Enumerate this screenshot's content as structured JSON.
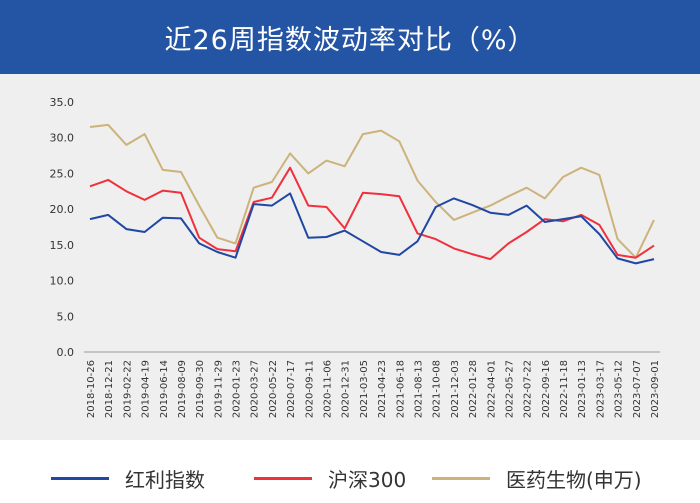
{
  "header": {
    "title": "近26周指数波动率对比（%）"
  },
  "colors": {
    "header_bg": "#2454a4",
    "series_1": "#1f47a3",
    "series_2": "#f0303c",
    "series_3": "#cdb27a",
    "plot_bg": "#efefef"
  },
  "chart_data": {
    "type": "line",
    "title": "近26周指数波动率对比（%）",
    "xlabel": "",
    "ylabel": "",
    "ylim": [
      0,
      35
    ],
    "yticks": [
      "0.0",
      "5.0",
      "10.0",
      "15.0",
      "20.0",
      "25.0",
      "30.0",
      "35.0"
    ],
    "grid": false,
    "legend_position": "bottom",
    "x": [
      "2018-10-26",
      "2018-12-21",
      "2019-02-22",
      "2019-04-19",
      "2019-06-14",
      "2019-08-09",
      "2019-09-30",
      "2019-11-29",
      "2020-01-23",
      "2020-03-27",
      "2020-05-22",
      "2020-07-17",
      "2020-09-11",
      "2020-11-06",
      "2020-12-31",
      "2021-03-05",
      "2021-04-23",
      "2021-06-18",
      "2021-08-13",
      "2021-10-08",
      "2021-12-03",
      "2022-01-28",
      "2022-04-01",
      "2022-05-27",
      "2022-07-22",
      "2022-09-16",
      "2022-11-18",
      "2023-01-13",
      "2023-03-17",
      "2023-05-12",
      "2023-07-07",
      "2023-09-01"
    ],
    "series": [
      {
        "name": "红利指数",
        "color": "#1f47a3",
        "values": [
          18.6,
          19.2,
          17.2,
          16.8,
          18.8,
          18.7,
          15.2,
          14.0,
          13.2,
          20.7,
          20.5,
          22.2,
          16.0,
          16.1,
          17.0,
          15.5,
          14.0,
          13.6,
          15.5,
          20.3,
          21.5,
          20.6,
          19.5,
          19.2,
          20.5,
          18.2,
          18.6,
          19.0,
          16.5,
          13.1,
          12.4,
          13.0
        ]
      },
      {
        "name": "沪深300",
        "color": "#f0303c",
        "values": [
          23.2,
          24.1,
          22.5,
          21.3,
          22.6,
          22.3,
          16.0,
          14.4,
          14.1,
          21.0,
          21.6,
          25.8,
          20.5,
          20.3,
          17.3,
          22.3,
          22.1,
          21.8,
          16.6,
          15.8,
          14.5,
          13.7,
          13.0,
          15.2,
          16.8,
          18.6,
          18.3,
          19.2,
          17.8,
          13.6,
          13.2,
          14.9
        ]
      },
      {
        "name": "医药生物(申万)",
        "color": "#cdb27a",
        "values": [
          31.5,
          31.8,
          29.0,
          30.5,
          25.5,
          25.2,
          20.5,
          16.0,
          15.2,
          23.0,
          23.8,
          27.8,
          25.0,
          26.8,
          26.0,
          30.5,
          31.0,
          29.5,
          24.0,
          21.0,
          18.5,
          19.5,
          20.5,
          21.8,
          23.0,
          21.5,
          24.5,
          25.8,
          24.8,
          15.8,
          13.2,
          18.5
        ]
      }
    ]
  },
  "legend": [
    {
      "label": "红利指数",
      "color": "#1f47a3"
    },
    {
      "label": "沪深300",
      "color": "#f0303c"
    },
    {
      "label": "医药生物(申万)",
      "color": "#cdb27a"
    }
  ]
}
